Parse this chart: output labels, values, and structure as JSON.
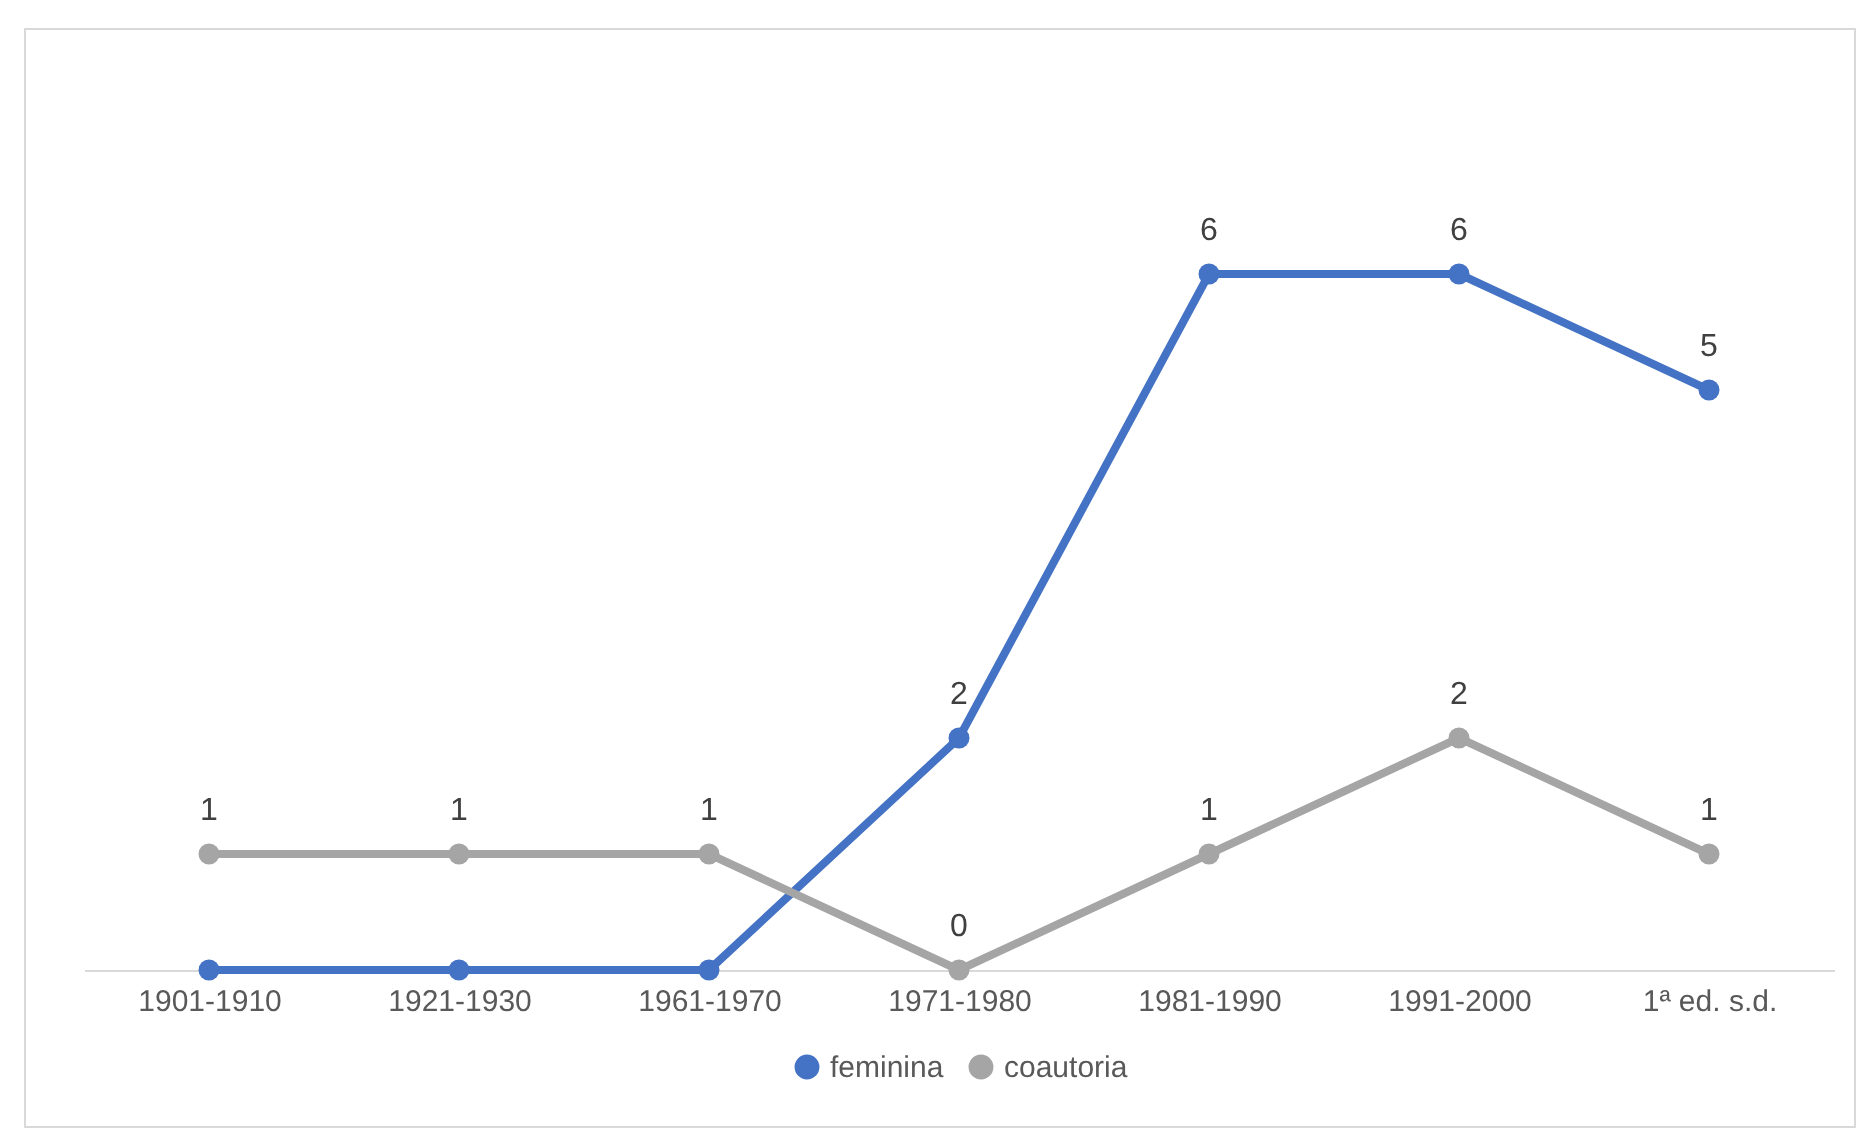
{
  "chart_data": {
    "type": "line",
    "categories": [
      "1901-1910",
      "1921-1930",
      "1961-1970",
      "1971-1980",
      "1981-1990",
      "1991-2000",
      "1ª ed. s.d."
    ],
    "series": [
      {
        "name": "feminina",
        "color": "#4472c4",
        "values": [
          0,
          0,
          0,
          2,
          6,
          6,
          5
        ],
        "value_labels": [
          null,
          null,
          null,
          "2",
          "6",
          "6",
          "5"
        ]
      },
      {
        "name": "coautoria",
        "color": "#a5a5a5",
        "values": [
          1,
          1,
          1,
          0,
          1,
          2,
          1
        ],
        "value_labels": [
          "1",
          "1",
          "1",
          "0",
          "1",
          "2",
          "1"
        ]
      }
    ],
    "tick_labels": "x",
    "marker": "circle",
    "line_style": "solid",
    "legend": "bottom"
  }
}
